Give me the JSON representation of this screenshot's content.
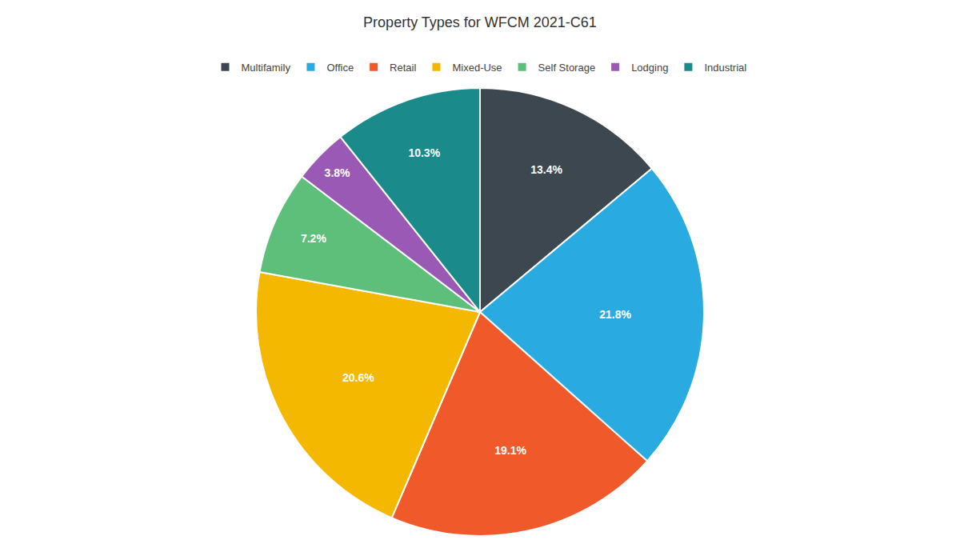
{
  "chart_data": {
    "type": "pie",
    "title": "Property Types for WFCM 2021-C61",
    "categories": [
      "Multifamily",
      "Office",
      "Retail",
      "Mixed-Use",
      "Self Storage",
      "Lodging",
      "Industrial"
    ],
    "values": [
      13.4,
      21.8,
      19.1,
      20.6,
      7.2,
      3.8,
      10.3
    ],
    "value_labels": [
      "13.4%",
      "21.8%",
      "19.1%",
      "20.6%",
      "7.2%",
      "3.8%",
      "10.3%"
    ],
    "colors": [
      "#3d4750",
      "#29abe2",
      "#f05a2a",
      "#f5b800",
      "#5dbf7a",
      "#9b59b6",
      "#1a8a8a"
    ],
    "data_labels": true,
    "legend": "top"
  }
}
